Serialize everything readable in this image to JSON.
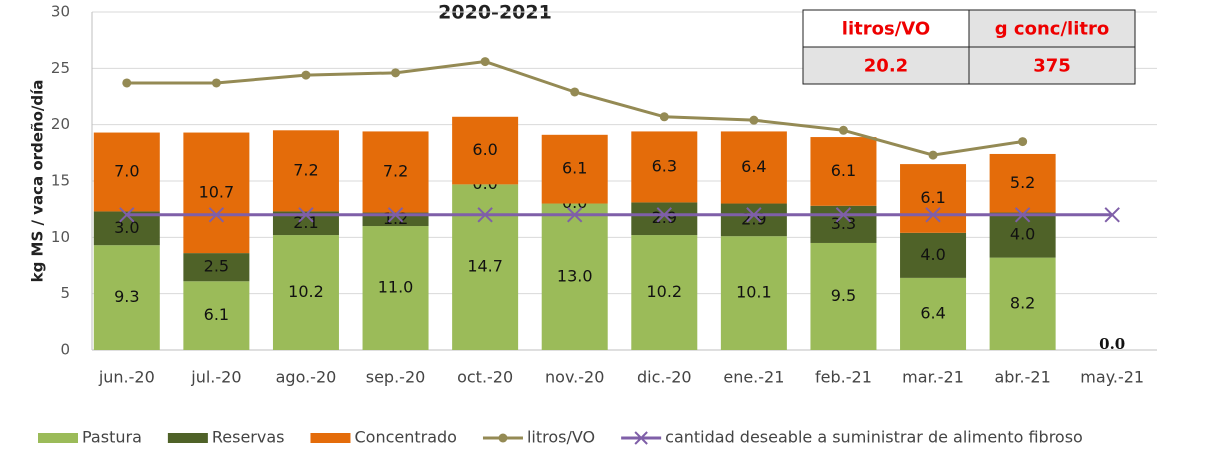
{
  "chart_data": {
    "type": "bar",
    "title": "2020-2021",
    "ylabel": "kg MS /  vaca ordeño/día",
    "categories": [
      "jun.-20",
      "jul.-20",
      "ago.-20",
      "sep.-20",
      "oct.-20",
      "nov.-20",
      "dic.-20",
      "ene.-21",
      "feb.-21",
      "mar.-21",
      "abr.-21",
      "may.-21"
    ],
    "series": [
      {
        "name": "Pastura",
        "type": "bar",
        "color": "#9bbb59",
        "values": [
          9.3,
          6.1,
          10.2,
          11.0,
          14.7,
          13.0,
          10.2,
          10.1,
          9.5,
          6.4,
          8.2,
          0
        ],
        "value_labels": [
          "9.3",
          "6.1",
          "10.2",
          "11.0",
          "14.7",
          "13.0",
          "10.2",
          "10.1",
          "9.5",
          "6.4",
          "8.2",
          "0.0"
        ]
      },
      {
        "name": "Reservas",
        "type": "bar",
        "color": "#4f6228",
        "values": [
          3.0,
          2.5,
          2.1,
          1.2,
          0.0,
          0.0,
          2.9,
          2.9,
          3.3,
          4.0,
          4.0,
          null
        ],
        "value_labels": [
          "3.0",
          "2.5",
          "2.1",
          "1.2",
          "0.0",
          "0.0",
          "2.9",
          "2.9",
          "3.3",
          "4.0",
          "4.0",
          null
        ]
      },
      {
        "name": "Concentrado",
        "type": "bar",
        "color": "#e46c0a",
        "values": [
          7.0,
          10.7,
          7.2,
          7.2,
          6.0,
          6.1,
          6.3,
          6.4,
          6.1,
          6.1,
          5.2,
          null
        ],
        "value_labels": [
          "7.0",
          "10.7",
          "7.2",
          "7.2",
          "6.0",
          "6.1",
          "6.3",
          "6.4",
          "6.1",
          "6.1",
          "5.2",
          null
        ]
      },
      {
        "name": "litros/VO",
        "type": "line",
        "marker": "circle",
        "color": "#948a54",
        "values": [
          23.7,
          23.7,
          24.4,
          24.6,
          25.6,
          22.9,
          20.7,
          20.4,
          19.5,
          17.3,
          18.5,
          null
        ]
      },
      {
        "name": "cantidad deseable a suministrar de alimento fibroso",
        "type": "line",
        "marker": "x",
        "color": "#7f5fa8",
        "values": [
          12,
          12,
          12,
          12,
          12,
          12,
          12,
          12,
          12,
          12,
          12,
          12
        ]
      }
    ],
    "ylim": [
      0,
      30
    ],
    "yticks": [
      0,
      5,
      10,
      15,
      20,
      25,
      30
    ],
    "grid": true,
    "legend": "bottom",
    "table": {
      "headers": [
        "litros/VO",
        "g conc/litro"
      ],
      "rows": [
        [
          20.2,
          375
        ]
      ]
    }
  }
}
